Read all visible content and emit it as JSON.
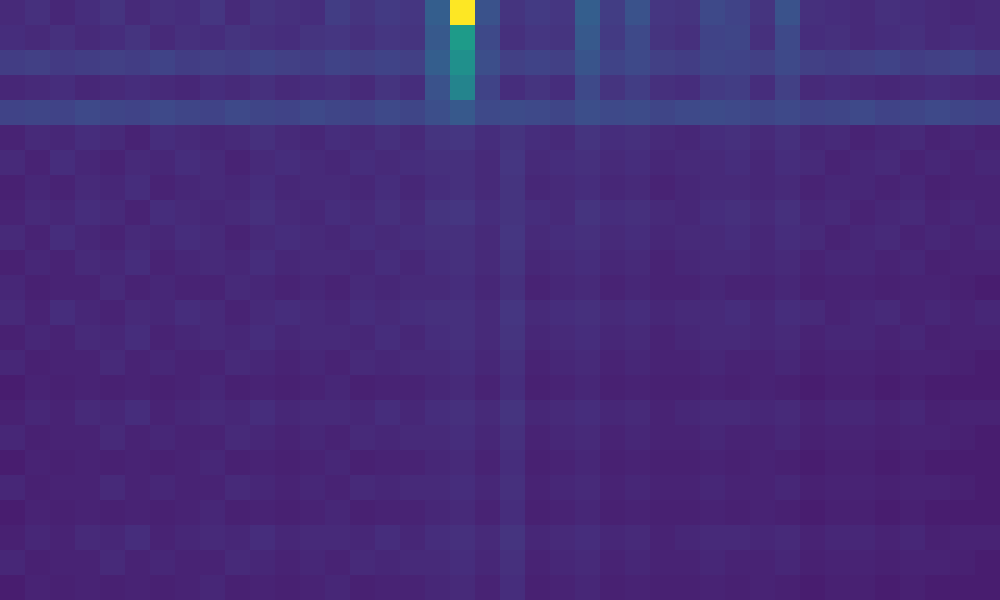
{
  "chart_data": {
    "type": "heatmap",
    "tick_labels": false,
    "color_range": [
      0,
      1
    ],
    "cells": [
      [
        0.12,
        0.14,
        0.11,
        0.13,
        0.15,
        0.12,
        0.14,
        0.13,
        0.16,
        0.12,
        0.15,
        0.14,
        0.13,
        0.18,
        0.15,
        0.17,
        0.16,
        0.3,
        1.0,
        0.25,
        0.15,
        0.17,
        0.16,
        0.3,
        0.18,
        0.25,
        0.16,
        0.15,
        0.22,
        0.2,
        0.15,
        0.25,
        0.14,
        0.13,
        0.12,
        0.14,
        0.13,
        0.12,
        0.11,
        0.12
      ],
      [
        0.13,
        0.12,
        0.14,
        0.12,
        0.13,
        0.15,
        0.12,
        0.14,
        0.13,
        0.15,
        0.14,
        0.13,
        0.15,
        0.16,
        0.14,
        0.16,
        0.15,
        0.28,
        0.55,
        0.22,
        0.14,
        0.16,
        0.15,
        0.28,
        0.17,
        0.22,
        0.15,
        0.14,
        0.2,
        0.21,
        0.14,
        0.22,
        0.13,
        0.14,
        0.12,
        0.13,
        0.14,
        0.12,
        0.13,
        0.12
      ],
      [
        0.18,
        0.19,
        0.17,
        0.18,
        0.19,
        0.18,
        0.2,
        0.18,
        0.19,
        0.18,
        0.2,
        0.19,
        0.18,
        0.2,
        0.19,
        0.2,
        0.19,
        0.3,
        0.5,
        0.24,
        0.19,
        0.2,
        0.19,
        0.26,
        0.2,
        0.22,
        0.19,
        0.18,
        0.21,
        0.2,
        0.19,
        0.22,
        0.19,
        0.18,
        0.19,
        0.2,
        0.18,
        0.19,
        0.2,
        0.18
      ],
      [
        0.11,
        0.12,
        0.13,
        0.11,
        0.12,
        0.13,
        0.12,
        0.11,
        0.13,
        0.12,
        0.14,
        0.12,
        0.13,
        0.14,
        0.12,
        0.15,
        0.13,
        0.25,
        0.45,
        0.2,
        0.13,
        0.15,
        0.13,
        0.22,
        0.15,
        0.18,
        0.14,
        0.13,
        0.17,
        0.18,
        0.13,
        0.19,
        0.12,
        0.13,
        0.12,
        0.11,
        0.12,
        0.13,
        0.12,
        0.11
      ],
      [
        0.2,
        0.21,
        0.2,
        0.22,
        0.21,
        0.2,
        0.22,
        0.21,
        0.2,
        0.22,
        0.21,
        0.2,
        0.22,
        0.21,
        0.2,
        0.22,
        0.21,
        0.24,
        0.28,
        0.22,
        0.23,
        0.22,
        0.21,
        0.24,
        0.22,
        0.23,
        0.21,
        0.22,
        0.23,
        0.22,
        0.21,
        0.22,
        0.2,
        0.21,
        0.22,
        0.2,
        0.21,
        0.22,
        0.21,
        0.2
      ],
      [
        0.1,
        0.12,
        0.11,
        0.13,
        0.12,
        0.1,
        0.13,
        0.12,
        0.11,
        0.12,
        0.14,
        0.12,
        0.11,
        0.13,
        0.12,
        0.14,
        0.12,
        0.15,
        0.16,
        0.13,
        0.15,
        0.13,
        0.12,
        0.15,
        0.13,
        0.14,
        0.12,
        0.11,
        0.13,
        0.14,
        0.12,
        0.14,
        0.11,
        0.12,
        0.1,
        0.11,
        0.12,
        0.1,
        0.11,
        0.1
      ],
      [
        0.12,
        0.1,
        0.13,
        0.11,
        0.1,
        0.12,
        0.11,
        0.13,
        0.12,
        0.1,
        0.12,
        0.13,
        0.12,
        0.11,
        0.13,
        0.12,
        0.13,
        0.14,
        0.14,
        0.12,
        0.16,
        0.12,
        0.13,
        0.14,
        0.12,
        0.13,
        0.11,
        0.12,
        0.12,
        0.13,
        0.11,
        0.13,
        0.12,
        0.1,
        0.11,
        0.12,
        0.1,
        0.11,
        0.1,
        0.11
      ],
      [
        0.09,
        0.11,
        0.1,
        0.12,
        0.11,
        0.13,
        0.1,
        0.11,
        0.12,
        0.11,
        0.13,
        0.11,
        0.12,
        0.12,
        0.11,
        0.13,
        0.11,
        0.13,
        0.14,
        0.12,
        0.15,
        0.11,
        0.12,
        0.13,
        0.11,
        0.12,
        0.1,
        0.11,
        0.12,
        0.12,
        0.11,
        0.12,
        0.1,
        0.11,
        0.11,
        0.1,
        0.11,
        0.09,
        0.1,
        0.1
      ],
      [
        0.1,
        0.12,
        0.11,
        0.13,
        0.12,
        0.1,
        0.13,
        0.12,
        0.11,
        0.12,
        0.14,
        0.12,
        0.11,
        0.13,
        0.12,
        0.14,
        0.12,
        0.15,
        0.16,
        0.13,
        0.15,
        0.13,
        0.12,
        0.15,
        0.13,
        0.14,
        0.12,
        0.11,
        0.13,
        0.14,
        0.12,
        0.14,
        0.11,
        0.12,
        0.1,
        0.11,
        0.12,
        0.1,
        0.11,
        0.1
      ],
      [
        0.12,
        0.1,
        0.13,
        0.11,
        0.1,
        0.12,
        0.11,
        0.13,
        0.12,
        0.1,
        0.12,
        0.13,
        0.12,
        0.11,
        0.13,
        0.12,
        0.13,
        0.14,
        0.14,
        0.12,
        0.16,
        0.12,
        0.13,
        0.14,
        0.12,
        0.13,
        0.11,
        0.12,
        0.12,
        0.13,
        0.11,
        0.13,
        0.12,
        0.1,
        0.11,
        0.12,
        0.1,
        0.11,
        0.1,
        0.11
      ],
      [
        0.09,
        0.11,
        0.1,
        0.12,
        0.11,
        0.13,
        0.1,
        0.11,
        0.12,
        0.11,
        0.13,
        0.11,
        0.12,
        0.12,
        0.11,
        0.13,
        0.11,
        0.13,
        0.14,
        0.12,
        0.15,
        0.11,
        0.12,
        0.13,
        0.11,
        0.12,
        0.1,
        0.11,
        0.12,
        0.12,
        0.11,
        0.12,
        0.1,
        0.11,
        0.11,
        0.1,
        0.11,
        0.09,
        0.1,
        0.1
      ],
      [
        0.11,
        0.09,
        0.1,
        0.1,
        0.12,
        0.1,
        0.11,
        0.1,
        0.1,
        0.12,
        0.11,
        0.1,
        0.11,
        0.1,
        0.12,
        0.11,
        0.12,
        0.12,
        0.13,
        0.11,
        0.14,
        0.1,
        0.11,
        0.12,
        0.1,
        0.11,
        0.1,
        0.1,
        0.11,
        0.1,
        0.1,
        0.11,
        0.09,
        0.1,
        0.1,
        0.09,
        0.1,
        0.1,
        0.09,
        0.08
      ],
      [
        0.12,
        0.1,
        0.13,
        0.11,
        0.1,
        0.12,
        0.11,
        0.13,
        0.12,
        0.1,
        0.12,
        0.13,
        0.12,
        0.11,
        0.13,
        0.12,
        0.13,
        0.14,
        0.14,
        0.12,
        0.16,
        0.12,
        0.13,
        0.14,
        0.12,
        0.13,
        0.11,
        0.12,
        0.12,
        0.13,
        0.11,
        0.13,
        0.12,
        0.1,
        0.11,
        0.12,
        0.1,
        0.11,
        0.1,
        0.11
      ],
      [
        0.09,
        0.11,
        0.1,
        0.12,
        0.11,
        0.13,
        0.1,
        0.11,
        0.12,
        0.11,
        0.13,
        0.11,
        0.12,
        0.12,
        0.11,
        0.13,
        0.11,
        0.13,
        0.14,
        0.12,
        0.15,
        0.11,
        0.12,
        0.13,
        0.11,
        0.12,
        0.1,
        0.11,
        0.12,
        0.12,
        0.11,
        0.12,
        0.1,
        0.11,
        0.11,
        0.1,
        0.11,
        0.09,
        0.1,
        0.1
      ],
      [
        0.11,
        0.09,
        0.1,
        0.1,
        0.12,
        0.1,
        0.11,
        0.1,
        0.1,
        0.12,
        0.11,
        0.1,
        0.11,
        0.1,
        0.12,
        0.11,
        0.12,
        0.12,
        0.13,
        0.11,
        0.14,
        0.1,
        0.11,
        0.12,
        0.1,
        0.11,
        0.1,
        0.1,
        0.11,
        0.1,
        0.1,
        0.11,
        0.09,
        0.1,
        0.1,
        0.09,
        0.1,
        0.1,
        0.09,
        0.08
      ],
      [
        0.08,
        0.1,
        0.09,
        0.1,
        0.09,
        0.1,
        0.09,
        0.1,
        0.11,
        0.09,
        0.1,
        0.09,
        0.1,
        0.11,
        0.09,
        0.1,
        0.1,
        0.11,
        0.12,
        0.1,
        0.13,
        0.09,
        0.1,
        0.11,
        0.09,
        0.1,
        0.09,
        0.09,
        0.1,
        0.09,
        0.1,
        0.09,
        0.08,
        0.09,
        0.09,
        0.08,
        0.09,
        0.08,
        0.08,
        0.08
      ],
      [
        0.09,
        0.11,
        0.1,
        0.12,
        0.11,
        0.13,
        0.1,
        0.11,
        0.12,
        0.11,
        0.13,
        0.11,
        0.12,
        0.12,
        0.11,
        0.13,
        0.11,
        0.13,
        0.14,
        0.12,
        0.15,
        0.11,
        0.12,
        0.13,
        0.11,
        0.12,
        0.1,
        0.11,
        0.12,
        0.12,
        0.11,
        0.12,
        0.1,
        0.11,
        0.11,
        0.1,
        0.11,
        0.09,
        0.1,
        0.1
      ],
      [
        0.11,
        0.09,
        0.1,
        0.1,
        0.12,
        0.1,
        0.11,
        0.1,
        0.1,
        0.12,
        0.11,
        0.1,
        0.11,
        0.1,
        0.12,
        0.11,
        0.12,
        0.12,
        0.13,
        0.11,
        0.14,
        0.1,
        0.11,
        0.12,
        0.1,
        0.11,
        0.1,
        0.1,
        0.11,
        0.1,
        0.1,
        0.11,
        0.09,
        0.1,
        0.1,
        0.09,
        0.1,
        0.1,
        0.09,
        0.08
      ],
      [
        0.08,
        0.1,
        0.09,
        0.1,
        0.09,
        0.1,
        0.09,
        0.1,
        0.11,
        0.09,
        0.1,
        0.09,
        0.1,
        0.11,
        0.09,
        0.1,
        0.1,
        0.11,
        0.12,
        0.1,
        0.13,
        0.09,
        0.1,
        0.11,
        0.09,
        0.1,
        0.09,
        0.09,
        0.1,
        0.09,
        0.1,
        0.09,
        0.08,
        0.09,
        0.09,
        0.08,
        0.09,
        0.08,
        0.08,
        0.08
      ],
      [
        0.11,
        0.09,
        0.1,
        0.1,
        0.12,
        0.1,
        0.11,
        0.1,
        0.1,
        0.12,
        0.11,
        0.1,
        0.11,
        0.1,
        0.12,
        0.11,
        0.12,
        0.12,
        0.13,
        0.11,
        0.14,
        0.1,
        0.11,
        0.12,
        0.1,
        0.11,
        0.1,
        0.1,
        0.11,
        0.1,
        0.1,
        0.11,
        0.09,
        0.1,
        0.1,
        0.09,
        0.1,
        0.1,
        0.09,
        0.08
      ],
      [
        0.08,
        0.1,
        0.09,
        0.1,
        0.09,
        0.1,
        0.09,
        0.1,
        0.11,
        0.09,
        0.1,
        0.09,
        0.1,
        0.11,
        0.09,
        0.1,
        0.1,
        0.11,
        0.12,
        0.1,
        0.13,
        0.09,
        0.1,
        0.11,
        0.09,
        0.1,
        0.09,
        0.09,
        0.1,
        0.09,
        0.1,
        0.09,
        0.08,
        0.09,
        0.09,
        0.08,
        0.09,
        0.08,
        0.08,
        0.08
      ],
      [
        0.09,
        0.11,
        0.1,
        0.12,
        0.11,
        0.13,
        0.1,
        0.11,
        0.12,
        0.11,
        0.13,
        0.11,
        0.12,
        0.12,
        0.11,
        0.13,
        0.11,
        0.13,
        0.14,
        0.12,
        0.15,
        0.11,
        0.12,
        0.13,
        0.11,
        0.12,
        0.1,
        0.11,
        0.12,
        0.12,
        0.11,
        0.12,
        0.1,
        0.11,
        0.11,
        0.1,
        0.11,
        0.09,
        0.1,
        0.1
      ],
      [
        0.11,
        0.09,
        0.1,
        0.1,
        0.12,
        0.1,
        0.11,
        0.1,
        0.1,
        0.12,
        0.11,
        0.1,
        0.11,
        0.1,
        0.12,
        0.11,
        0.12,
        0.12,
        0.13,
        0.11,
        0.14,
        0.1,
        0.11,
        0.12,
        0.1,
        0.11,
        0.1,
        0.1,
        0.11,
        0.1,
        0.1,
        0.11,
        0.09,
        0.1,
        0.1,
        0.09,
        0.1,
        0.1,
        0.09,
        0.08
      ],
      [
        0.08,
        0.1,
        0.09,
        0.1,
        0.09,
        0.1,
        0.09,
        0.1,
        0.11,
        0.09,
        0.1,
        0.09,
        0.1,
        0.11,
        0.09,
        0.1,
        0.1,
        0.11,
        0.12,
        0.1,
        0.13,
        0.09,
        0.1,
        0.11,
        0.09,
        0.1,
        0.09,
        0.09,
        0.1,
        0.09,
        0.1,
        0.09,
        0.08,
        0.09,
        0.09,
        0.08,
        0.09,
        0.08,
        0.08,
        0.08
      ]
    ]
  }
}
